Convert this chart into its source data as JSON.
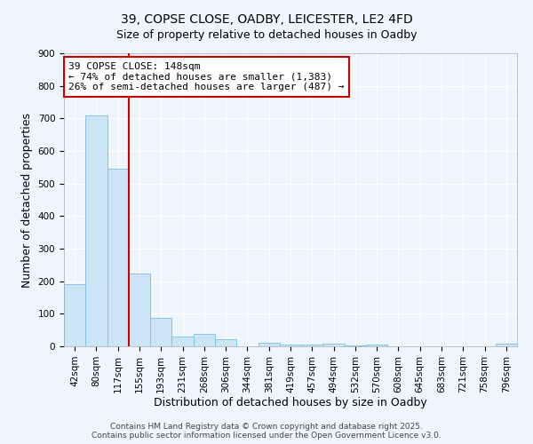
{
  "title": "39, COPSE CLOSE, OADBY, LEICESTER, LE2 4FD",
  "subtitle": "Size of property relative to detached houses in Oadby",
  "xlabel": "Distribution of detached houses by size in Oadby",
  "ylabel": "Number of detached properties",
  "bar_labels": [
    "42sqm",
    "80sqm",
    "117sqm",
    "155sqm",
    "193sqm",
    "231sqm",
    "268sqm",
    "306sqm",
    "344sqm",
    "381sqm",
    "419sqm",
    "457sqm",
    "494sqm",
    "532sqm",
    "570sqm",
    "608sqm",
    "645sqm",
    "683sqm",
    "721sqm",
    "758sqm",
    "796sqm"
  ],
  "bar_values": [
    190,
    710,
    545,
    225,
    88,
    30,
    38,
    22,
    0,
    12,
    5,
    5,
    7,
    3,
    5,
    0,
    0,
    0,
    0,
    0,
    8
  ],
  "bar_color": "#cce5f6",
  "bar_edge_color": "#7bbfdf",
  "vline_x_index": 2.5,
  "vline_color": "#cc0000",
  "annotation_title": "39 COPSE CLOSE: 148sqm",
  "annotation_line1": "← 74% of detached houses are smaller (1,383)",
  "annotation_line2": "26% of semi-detached houses are larger (487) →",
  "annotation_box_color": "#ffffff",
  "annotation_box_edge": "#cc0000",
  "ylim": [
    0,
    900
  ],
  "yticks": [
    0,
    100,
    200,
    300,
    400,
    500,
    600,
    700,
    800,
    900
  ],
  "footer1": "Contains HM Land Registry data © Crown copyright and database right 2025.",
  "footer2": "Contains public sector information licensed under the Open Government Licence v3.0.",
  "bg_color": "#eef5fc",
  "grid_color": "#ffffff",
  "title_fontsize": 10,
  "tick_fontsize": 7.5,
  "label_fontsize": 9,
  "footer_fontsize": 6.5,
  "annot_fontsize": 8
}
